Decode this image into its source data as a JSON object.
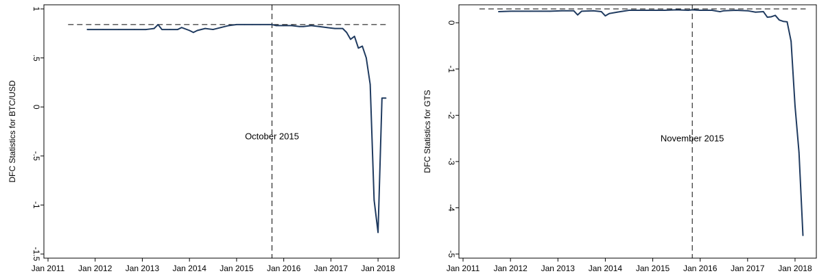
{
  "colors": {
    "series": "#1f3a5f",
    "axis": "#000000",
    "background": "#ffffff"
  },
  "chart_data": [
    {
      "type": "line",
      "ylabel": "DFC Statistics for BTC/USD",
      "ylim": [
        -1.5,
        1
      ],
      "yticks": [
        {
          "value": 1,
          "label": "1"
        },
        {
          "value": 0.5,
          "label": ".5"
        },
        {
          "value": 0,
          "label": "0"
        },
        {
          "value": -0.5,
          "label": "-.5"
        },
        {
          "value": -1,
          "label": "-1"
        },
        {
          "value": -1.5,
          "label": "-1.5"
        }
      ],
      "xticks": [
        "Jan 2011",
        "Jan 2012",
        "Jan 2013",
        "Jan 2014",
        "Jan 2015",
        "Jan 2016",
        "Jan 2017",
        "Jan 2018"
      ],
      "xlim": [
        "2011-01",
        "2018-05"
      ],
      "hline": 0.84,
      "vline": {
        "date": "2015-10",
        "label": "October 2015",
        "label_y": -0.3
      },
      "series": [
        {
          "x": [
            "2011-11",
            "2012-03",
            "2012-07",
            "2012-11",
            "2013-02",
            "2013-04",
            "2013-05",
            "2013-06",
            "2013-08",
            "2013-10",
            "2013-11",
            "2014-01",
            "2014-02",
            "2014-03",
            "2014-05",
            "2014-07",
            "2014-09",
            "2014-11",
            "2015-01",
            "2015-03",
            "2015-05",
            "2015-07",
            "2015-09",
            "2015-10",
            "2015-11",
            "2016-01",
            "2016-03",
            "2016-05",
            "2016-06",
            "2016-08",
            "2016-10",
            "2016-12",
            "2017-02",
            "2017-04",
            "2017-05",
            "2017-06",
            "2017-07",
            "2017-08",
            "2017-09",
            "2017-10",
            "2017-11",
            "2017-12",
            "2018-01",
            "2018-02",
            "2018-03"
          ],
          "y": [
            0.79,
            0.79,
            0.79,
            0.79,
            0.79,
            0.8,
            0.84,
            0.79,
            0.79,
            0.79,
            0.81,
            0.78,
            0.76,
            0.78,
            0.8,
            0.79,
            0.81,
            0.83,
            0.84,
            0.84,
            0.84,
            0.84,
            0.84,
            0.84,
            0.83,
            0.83,
            0.83,
            0.82,
            0.82,
            0.83,
            0.82,
            0.81,
            0.8,
            0.8,
            0.76,
            0.69,
            0.72,
            0.6,
            0.62,
            0.5,
            0.23,
            -0.95,
            -1.28,
            0.09,
            0.09
          ]
        }
      ]
    },
    {
      "type": "line",
      "ylabel": "DFC Statistics for GTS",
      "ylim": [
        -5,
        0.3
      ],
      "yticks": [
        {
          "value": 0,
          "label": "0"
        },
        {
          "value": -1,
          "label": "-1"
        },
        {
          "value": -2,
          "label": "-2"
        },
        {
          "value": -3,
          "label": "-3"
        },
        {
          "value": -4,
          "label": "-4"
        },
        {
          "value": -5,
          "label": "-5"
        }
      ],
      "xticks": [
        "Jan 2011",
        "Jan 2012",
        "Jan 2013",
        "Jan 2014",
        "Jan 2015",
        "Jan 2016",
        "Jan 2017",
        "Jan 2018"
      ],
      "xlim": [
        "2011-01",
        "2018-05"
      ],
      "hline": 0.3,
      "vline": {
        "date": "2015-11",
        "label": "November 2015",
        "label_y": -2.5
      },
      "series": [
        {
          "x": [
            "2011-10",
            "2012-01",
            "2012-06",
            "2012-11",
            "2013-02",
            "2013-05",
            "2013-06",
            "2013-07",
            "2013-10",
            "2013-12",
            "2014-01",
            "2014-02",
            "2014-04",
            "2014-07",
            "2014-10",
            "2015-01",
            "2015-04",
            "2015-07",
            "2015-10",
            "2015-11",
            "2016-01",
            "2016-04",
            "2016-06",
            "2016-07",
            "2016-10",
            "2017-01",
            "2017-03",
            "2017-05",
            "2017-06",
            "2017-07",
            "2017-08",
            "2017-09",
            "2017-10",
            "2017-11",
            "2017-12",
            "2018-01",
            "2018-02",
            "2018-03"
          ],
          "y": [
            0.24,
            0.25,
            0.25,
            0.25,
            0.26,
            0.26,
            0.17,
            0.25,
            0.26,
            0.24,
            0.15,
            0.2,
            0.23,
            0.27,
            0.27,
            0.27,
            0.27,
            0.28,
            0.27,
            0.28,
            0.27,
            0.27,
            0.24,
            0.26,
            0.27,
            0.26,
            0.23,
            0.24,
            0.12,
            0.13,
            0.16,
            0.06,
            0.03,
            0.02,
            -0.4,
            -1.8,
            -2.8,
            -4.6
          ]
        }
      ]
    }
  ]
}
